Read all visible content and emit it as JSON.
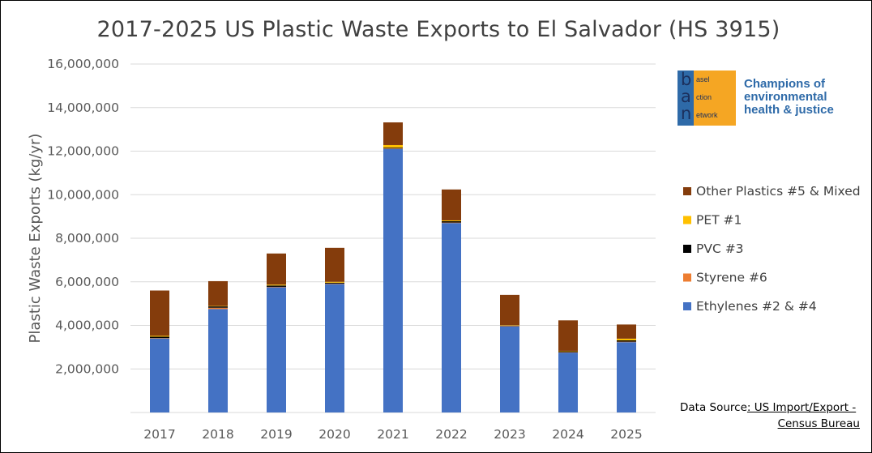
{
  "title": "2017-2025 US Plastic Waste Exports to El Salvador (HS 3915)",
  "logo": {
    "letters": [
      "b",
      "a",
      "n"
    ],
    "words": [
      "asel",
      "ction",
      "etwork"
    ],
    "tagline": "Champions of environmental health & justice",
    "colors": {
      "background": "#f5a623",
      "bar": "#2e6aa8",
      "text": "#1b2f5c"
    }
  },
  "source": {
    "prefix": "Data Source",
    "link_part1": ": US Import/Export -",
    "link_part2": "Census Bureau"
  },
  "chart_data": {
    "type": "bar",
    "stacked": true,
    "categories": [
      "2017",
      "2018",
      "2019",
      "2020",
      "2021",
      "2022",
      "2023",
      "2024",
      "2025"
    ],
    "series": [
      {
        "name": "Ethylenes #2 & #4",
        "color": "#4472c4",
        "values": [
          3400000,
          4750000,
          5750000,
          5900000,
          12100000,
          8700000,
          3950000,
          2750000,
          3230000
        ]
      },
      {
        "name": "Styrene #6",
        "color": "#ed7d31",
        "values": [
          20000,
          60000,
          20000,
          20000,
          20000,
          20000,
          20000,
          20000,
          20000
        ]
      },
      {
        "name": "PVC #3",
        "color": "#000000",
        "values": [
          60000,
          60000,
          60000,
          40000,
          40000,
          60000,
          20000,
          40000,
          60000
        ]
      },
      {
        "name": "PET #1",
        "color": "#ffc000",
        "values": [
          40000,
          20000,
          40000,
          40000,
          120000,
          40000,
          20000,
          20000,
          80000
        ]
      },
      {
        "name": "Other Plastics #5 & Mixed",
        "color": "#843c0c",
        "values": [
          2080000,
          1140000,
          1430000,
          1560000,
          1040000,
          1420000,
          1390000,
          1400000,
          650000
        ]
      }
    ],
    "legend_order": [
      "Other Plastics #5 & Mixed",
      "PET #1",
      "PVC #3",
      "Styrene #6",
      "Ethylenes #2 & #4"
    ],
    "ylabel": "Plastic Waste Exports (kg/yr)",
    "xlabel": "",
    "ylim": [
      0,
      16000000
    ],
    "yticks": [
      "2,000,000",
      "4,000,000",
      "6,000,000",
      "8,000,000",
      "10,000,000",
      "12,000,000",
      "14,000,000",
      "16,000,000"
    ],
    "ytick_values": [
      2000000,
      4000000,
      6000000,
      8000000,
      10000000,
      12000000,
      14000000,
      16000000
    ],
    "grid": true,
    "legend_position": "right"
  }
}
